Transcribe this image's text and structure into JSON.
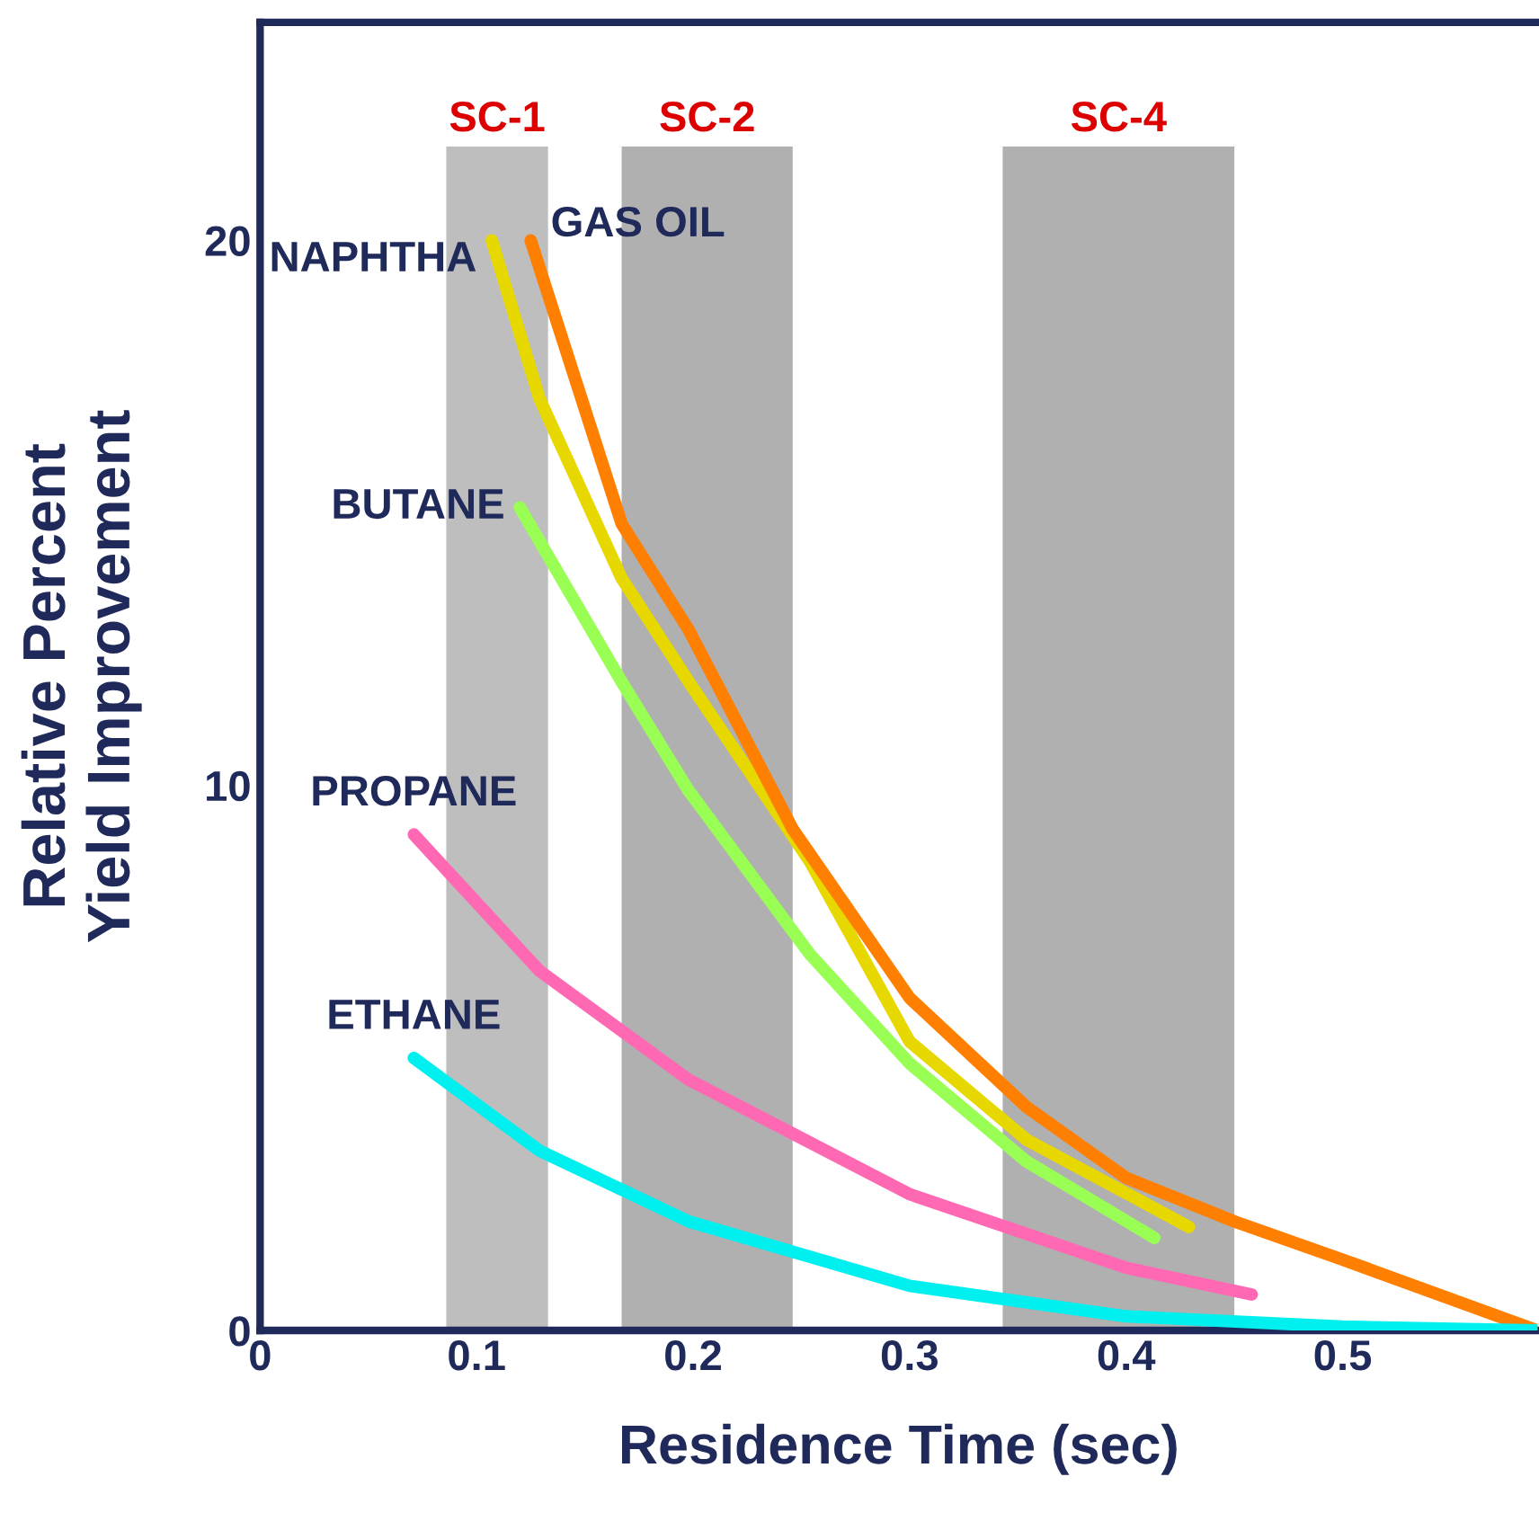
{
  "chart_data": {
    "type": "line",
    "xlabel": "Residence Time (sec)",
    "ylabel": "Relative Percent\nYield Improvement",
    "xlim": [
      0,
      0.59
    ],
    "ylim": [
      0,
      24
    ],
    "xticks": [
      0,
      0.1,
      0.2,
      0.3,
      0.4,
      0.5
    ],
    "yticks": [
      0,
      10,
      20
    ],
    "bands": [
      {
        "axis": "x",
        "from": 0.086,
        "to": 0.133,
        "label": "SC-1",
        "color": "#bebebe"
      },
      {
        "axis": "x",
        "from": 0.167,
        "to": 0.246,
        "label": "SC-2",
        "color": "#b0b0b0"
      },
      {
        "axis": "x",
        "from": 0.343,
        "to": 0.45,
        "label": "SC-4",
        "color": "#b0b0b0"
      }
    ],
    "series": [
      {
        "name": "NAPHTHA",
        "color": "#e6d800",
        "x": [
          0.107,
          0.129,
          0.167,
          0.198,
          0.254,
          0.3,
          0.354,
          0.429
        ],
        "values": [
          20.0,
          17.1,
          13.8,
          11.9,
          8.6,
          5.3,
          3.5,
          1.9
        ]
      },
      {
        "name": "GAS OIL",
        "color": "#ff7f00",
        "x": [
          0.125,
          0.167,
          0.198,
          0.246,
          0.3,
          0.354,
          0.4,
          0.45,
          0.5,
          0.59
        ],
        "values": [
          20.0,
          14.8,
          12.85,
          9.2,
          6.1,
          4.1,
          2.8,
          2.0,
          1.3,
          0.0
        ]
      },
      {
        "name": "BUTANE",
        "color": "#99ff55",
        "x": [
          0.12,
          0.167,
          0.198,
          0.254,
          0.3,
          0.354,
          0.413
        ],
        "values": [
          15.1,
          11.9,
          9.9,
          6.9,
          4.9,
          3.1,
          1.7
        ]
      },
      {
        "name": "PROPANE",
        "color": "#ff69b4",
        "x": [
          0.071,
          0.129,
          0.198,
          0.3,
          0.4,
          0.458
        ],
        "values": [
          9.1,
          6.6,
          4.6,
          2.5,
          1.15,
          0.66
        ]
      },
      {
        "name": "ETHANE",
        "color": "#00f0f0",
        "x": [
          0.071,
          0.129,
          0.198,
          0.3,
          0.4,
          0.5,
          0.59
        ],
        "values": [
          5.0,
          3.3,
          2.0,
          0.82,
          0.26,
          0.07,
          0.0
        ]
      }
    ]
  }
}
